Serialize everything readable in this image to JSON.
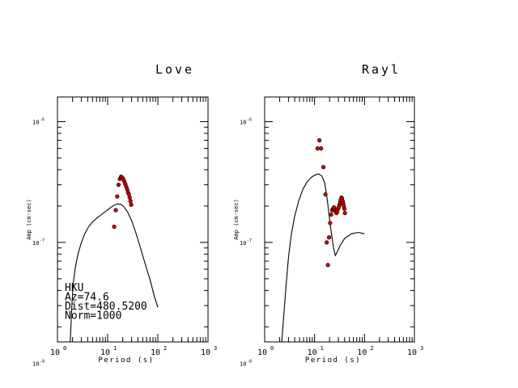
{
  "chart_data": [
    {
      "type": "line",
      "title": "Love",
      "xlabel": "Period (s)",
      "ylabel": "Amp (cm-sec)",
      "x_scale": "log",
      "y_scale": "log",
      "xlim": [
        1,
        1000
      ],
      "ylim": [
        1.5e-08,
        1.6e-06
      ],
      "x_ticks": [
        {
          "value": 1,
          "base": "10",
          "exp": "0"
        },
        {
          "value": 10,
          "base": "10",
          "exp": "1"
        },
        {
          "value": 100,
          "base": "10",
          "exp": "2"
        },
        {
          "value": 1000,
          "base": "10",
          "exp": "3"
        }
      ],
      "y_ticks": [
        {
          "value": 1e-06,
          "base": "10",
          "exp": "-6"
        },
        {
          "value": 1e-07,
          "base": "10",
          "exp": "-7"
        },
        {
          "value": 1e-08,
          "base": "10",
          "exp": "-8"
        }
      ],
      "series": [
        {
          "kind": "line",
          "color": "#000000",
          "x": [
            1.8,
            1.95,
            2.1,
            2.3,
            2.6,
            3.0,
            3.5,
            4.2,
            5.0,
            6.0,
            7.5,
            9.0,
            11.0,
            13.0,
            15.5,
            18.0,
            21.0,
            25.0,
            30.0,
            36.0,
            44.0,
            55.0,
            70.0,
            85.0,
            100.0
          ],
          "y": [
            1.5e-08,
            3.2e-08,
            4.9e-08,
            6.4e-08,
            8.2e-08,
            1e-07,
            1.18e-07,
            1.35e-07,
            1.48e-07,
            1.58e-07,
            1.7e-07,
            1.8e-07,
            1.92e-07,
            2.02e-07,
            2.08e-07,
            2.08e-07,
            1.98e-07,
            1.78e-07,
            1.52e-07,
            1.22e-07,
            9.3e-08,
            6.8e-08,
            4.9e-08,
            3.6e-08,
            2.9e-08
          ]
        },
        {
          "kind": "scatter",
          "color": "#cc0000",
          "x": [
            13.5,
            14.5,
            15.5,
            16.5,
            17.5,
            18.5,
            19.5,
            20.5,
            21.5,
            22.5,
            23.5,
            24.5,
            25.5,
            26.5,
            27.5,
            28.5,
            29.5
          ],
          "y": [
            1.35e-07,
            1.85e-07,
            2.4e-07,
            3e-07,
            3.35e-07,
            3.5e-07,
            3.45e-07,
            3.35e-07,
            3.2e-07,
            3.05e-07,
            2.9e-07,
            2.75e-07,
            2.6e-07,
            2.5e-07,
            2.35e-07,
            2.2e-07,
            2.05e-07
          ]
        }
      ],
      "station_info": [
        "HKU",
        "Az=74.6",
        "Dist=480.5200",
        "Norm=1000"
      ]
    },
    {
      "type": "line",
      "title": "Rayl",
      "xlabel": "Period (s)",
      "ylabel": "Amp (cm-sec)",
      "x_scale": "log",
      "y_scale": "log",
      "xlim": [
        1,
        1000
      ],
      "ylim": [
        1.5e-08,
        1.6e-06
      ],
      "x_ticks": [
        {
          "value": 1,
          "base": "10",
          "exp": "0"
        },
        {
          "value": 10,
          "base": "10",
          "exp": "1"
        },
        {
          "value": 100,
          "base": "10",
          "exp": "2"
        },
        {
          "value": 1000,
          "base": "10",
          "exp": "3"
        }
      ],
      "y_ticks": [
        {
          "value": 1e-06,
          "base": "10",
          "exp": "-6"
        },
        {
          "value": 1e-07,
          "base": "10",
          "exp": "-7"
        },
        {
          "value": 1e-08,
          "base": "10",
          "exp": "-8"
        }
      ],
      "series": [
        {
          "kind": "line",
          "color": "#000000",
          "x": [
            2.2,
            2.4,
            2.7,
            3.0,
            3.4,
            4.0,
            4.8,
            5.8,
            7.0,
            8.5,
            10.0,
            12.0,
            14.0,
            16.0,
            18.0,
            20.0,
            22.0,
            24.0,
            26.0,
            28.0,
            32.0,
            40.0,
            55.0,
            75.0,
            100.0
          ],
          "y": [
            1.5e-08,
            2.4e-08,
            4.5e-08,
            7.5e-08,
            1.15e-07,
            1.65e-07,
            2.2e-07,
            2.75e-07,
            3.15e-07,
            3.45e-07,
            3.6e-07,
            3.7e-07,
            3.55e-07,
            3.1e-07,
            2.25e-07,
            1.55e-07,
            1.15e-07,
            9e-08,
            7.8e-08,
            8.2e-08,
            9.3e-08,
            1.08e-07,
            1.18e-07,
            1.21e-07,
            1.18e-07
          ]
        },
        {
          "kind": "scatter",
          "color": "#cc0000",
          "x": [
            11.5,
            12.5,
            13.5,
            15.0,
            16.5,
            17.5,
            18.5,
            19.5,
            20.5,
            21.5,
            22.5,
            23.5,
            24.5,
            25.5,
            26.5,
            27.5,
            28.5,
            29.5,
            30.5,
            31.5,
            32.5,
            33.5,
            34.5,
            35.5,
            36.5,
            37.5,
            38.5,
            39.5,
            40.5
          ],
          "y": [
            6e-07,
            7e-07,
            6e-07,
            4.2e-07,
            2.5e-07,
            1e-07,
            6.5e-08,
            1.1e-07,
            1.45e-07,
            1.7e-07,
            1.85e-07,
            1.9e-07,
            1.95e-07,
            1.85e-07,
            1.8e-07,
            1.75e-07,
            1.8e-07,
            1.9e-07,
            1.95e-07,
            2.05e-07,
            2.15e-07,
            2.25e-07,
            2.35e-07,
            2.3e-07,
            2.2e-07,
            2.1e-07,
            2e-07,
            1.9e-07,
            1.75e-07
          ]
        }
      ]
    }
  ]
}
